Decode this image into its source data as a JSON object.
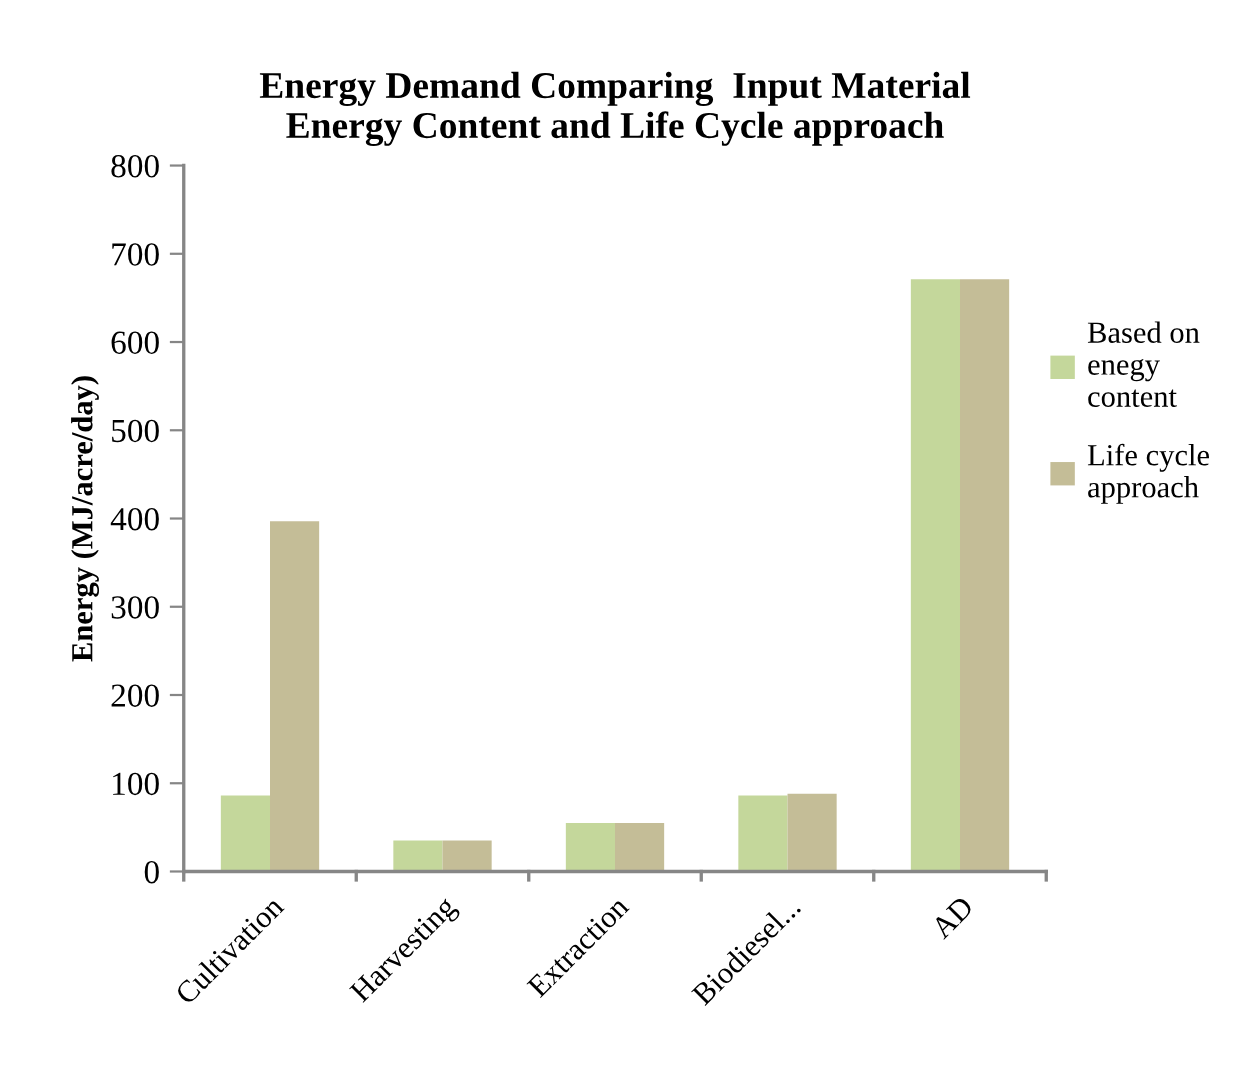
{
  "chart_data": {
    "type": "bar",
    "title": "Energy Demand Comparing  Input Material\nEnergy Content and Life Cycle approach",
    "ylabel": "Energy (MJ/acre/day)",
    "categories": [
      "Cultivation",
      "Harvesting",
      "Extraction",
      "Biodiesel...",
      "AD"
    ],
    "series": [
      {
        "name": "Based on\nenegy\ncontent",
        "color": "#c4d79b",
        "values": [
          86,
          35,
          55,
          86,
          671
        ]
      },
      {
        "name": "Life cycle\napproach",
        "color": "#c4bd97",
        "values": [
          397,
          35,
          55,
          88,
          671
        ]
      }
    ],
    "ylim": [
      0,
      800
    ],
    "yticks": [
      0,
      100,
      200,
      300,
      400,
      500,
      600,
      700,
      800
    ],
    "grid": false,
    "legend": "right"
  }
}
